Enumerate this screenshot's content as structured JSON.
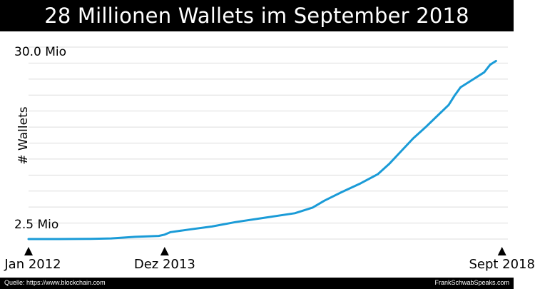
{
  "title": "28 Millionen Wallets im September 2018",
  "footer": {
    "source": "Quelle: https://www.blockchain.com",
    "brand": "FrankSchwabSpeaks.com"
  },
  "colors": {
    "line": "#1a9bd7",
    "bar": "#000000",
    "grid": "#dddddd"
  },
  "chart_data": {
    "type": "line",
    "title": "28 Millionen Wallets im September 2018",
    "ylabel": "# Wallets",
    "ylim": [
      0.5,
      31.0
    ],
    "y_tick_labels": [
      {
        "value": 30.0,
        "label": "30.0 Mio"
      },
      {
        "value": 2.5,
        "label": "2.5 Mio"
      }
    ],
    "x_markers": [
      {
        "index": 0,
        "label": "Jan 2012"
      },
      {
        "index": 23,
        "label": "Dez 2013"
      },
      {
        "index": 80,
        "label": "Sept 2018"
      }
    ],
    "x_range": [
      0,
      81
    ],
    "series": [
      {
        "values_mio": [
          [
            0,
            0.5
          ],
          [
            5,
            0.5
          ],
          [
            10,
            0.52
          ],
          [
            14,
            0.6
          ],
          [
            18,
            0.85
          ],
          [
            22,
            1.0
          ],
          [
            23,
            1.2
          ],
          [
            24,
            1.6
          ],
          [
            27,
            2.0
          ],
          [
            31,
            2.5
          ],
          [
            35,
            3.2
          ],
          [
            40,
            3.9
          ],
          [
            45,
            4.6
          ],
          [
            48,
            5.5
          ],
          [
            50,
            6.6
          ],
          [
            53,
            8.0
          ],
          [
            56,
            9.3
          ],
          [
            59,
            10.8
          ],
          [
            61,
            12.5
          ],
          [
            63,
            14.5
          ],
          [
            65,
            16.5
          ],
          [
            67,
            18.2
          ],
          [
            69,
            20.0
          ],
          [
            71,
            21.8
          ],
          [
            72,
            23.3
          ],
          [
            73,
            24.6
          ],
          [
            75,
            25.8
          ],
          [
            77,
            27.0
          ],
          [
            78,
            28.2
          ],
          [
            79,
            28.8
          ]
        ]
      }
    ]
  }
}
